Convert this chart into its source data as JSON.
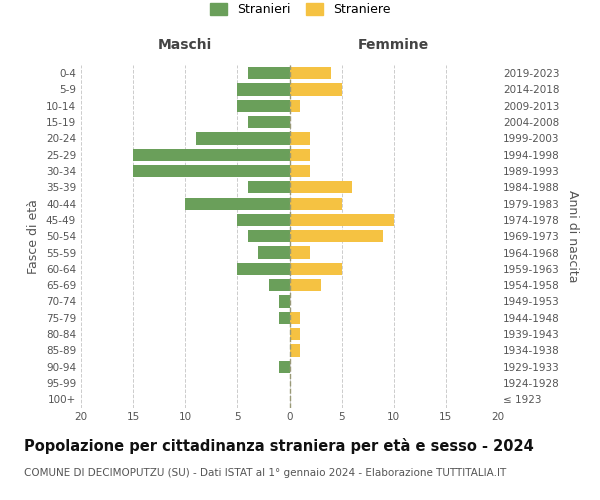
{
  "age_groups": [
    "100+",
    "95-99",
    "90-94",
    "85-89",
    "80-84",
    "75-79",
    "70-74",
    "65-69",
    "60-64",
    "55-59",
    "50-54",
    "45-49",
    "40-44",
    "35-39",
    "30-34",
    "25-29",
    "20-24",
    "15-19",
    "10-14",
    "5-9",
    "0-4"
  ],
  "birth_years": [
    "≤ 1923",
    "1924-1928",
    "1929-1933",
    "1934-1938",
    "1939-1943",
    "1944-1948",
    "1949-1953",
    "1954-1958",
    "1959-1963",
    "1964-1968",
    "1969-1973",
    "1974-1978",
    "1979-1983",
    "1984-1988",
    "1989-1993",
    "1994-1998",
    "1999-2003",
    "2004-2008",
    "2009-2013",
    "2014-2018",
    "2019-2023"
  ],
  "males": [
    0,
    0,
    1,
    0,
    0,
    1,
    1,
    2,
    5,
    3,
    4,
    5,
    10,
    4,
    15,
    15,
    9,
    4,
    5,
    5,
    4
  ],
  "females": [
    0,
    0,
    0,
    1,
    1,
    1,
    0,
    3,
    5,
    2,
    9,
    10,
    5,
    6,
    2,
    2,
    2,
    0,
    1,
    5,
    4
  ],
  "male_color": "#6a9f5a",
  "female_color": "#f5c242",
  "background_color": "#ffffff",
  "grid_color": "#cccccc",
  "title": "Popolazione per cittadinanza straniera per età e sesso - 2024",
  "subtitle": "COMUNE DI DECIMOPUTZU (SU) - Dati ISTAT al 1° gennaio 2024 - Elaborazione TUTTITALIA.IT",
  "ylabel_left": "Fasce di età",
  "ylabel_right": "Anni di nascita",
  "xlabel_left": "Maschi",
  "xlabel_right": "Femmine",
  "legend_stranieri": "Stranieri",
  "legend_straniere": "Straniere",
  "xlim": 20,
  "tick_fontsize": 7.5,
  "label_fontsize": 9,
  "title_fontsize": 10.5,
  "subtitle_fontsize": 7.5
}
